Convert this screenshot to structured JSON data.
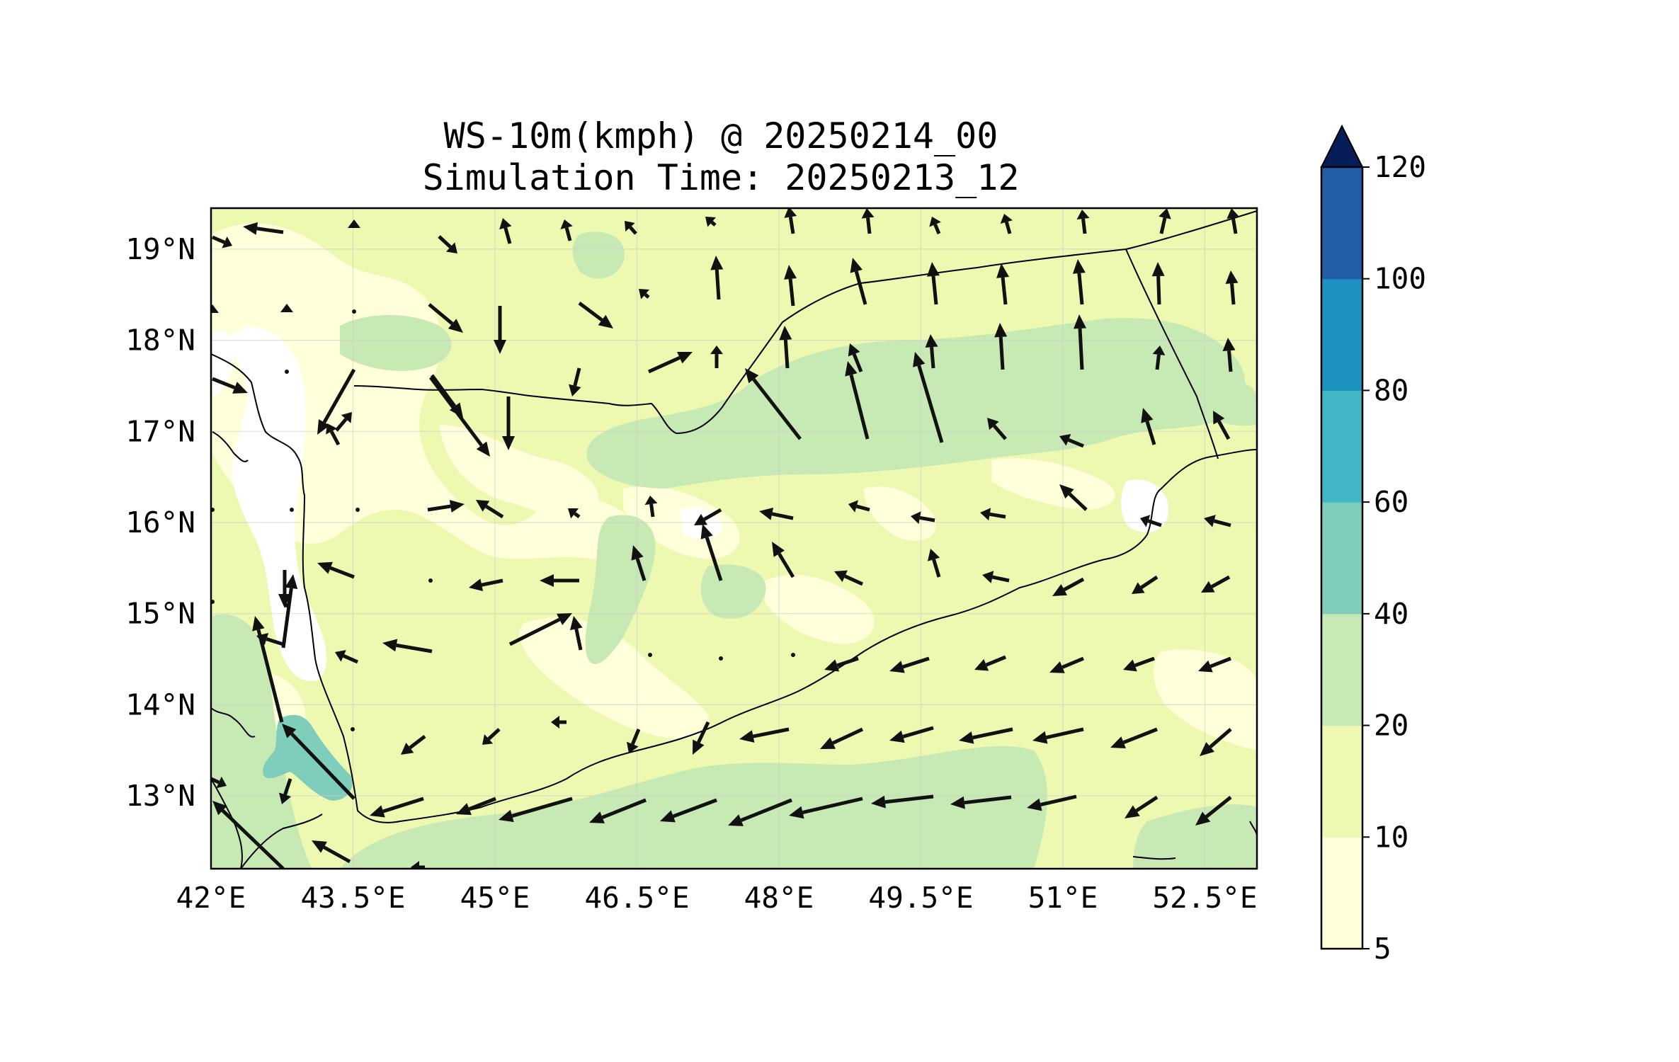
{
  "figure": {
    "title_line1": "WS-10m(kmph) @ 20250214_00",
    "title_line2": "Simulation Time: 20250213_12"
  },
  "map": {
    "extent": {
      "lon_min": 42.0,
      "lon_max": 53.05,
      "lat_min": 12.2,
      "lat_max": 19.45
    },
    "x_tick_labels": [
      "42°E",
      "43.5°E",
      "45°E",
      "46.5°E",
      "48°E",
      "49.5°E",
      "51°E",
      "52.5°E"
    ],
    "x_tick_values": [
      42,
      43.5,
      45,
      46.5,
      48,
      49.5,
      51,
      52.5
    ],
    "y_tick_labels": [
      "13°N",
      "14°N",
      "15°N",
      "16°N",
      "17°N",
      "18°N",
      "19°N"
    ],
    "y_tick_values": [
      13,
      14,
      15,
      16,
      17,
      18,
      19
    ],
    "gridlines": true
  },
  "colorbar": {
    "levels": [
      "5",
      "10",
      "20",
      "40",
      "60",
      "80",
      "100",
      "120"
    ],
    "colors": [
      "#ffffd9",
      "#edf8b1",
      "#c7e9b4",
      "#7fcdbb",
      "#41b6c4",
      "#1d91c0",
      "#225ea8",
      "#0c2c84"
    ],
    "extend": "max",
    "extend_color": "#081d58"
  }
}
